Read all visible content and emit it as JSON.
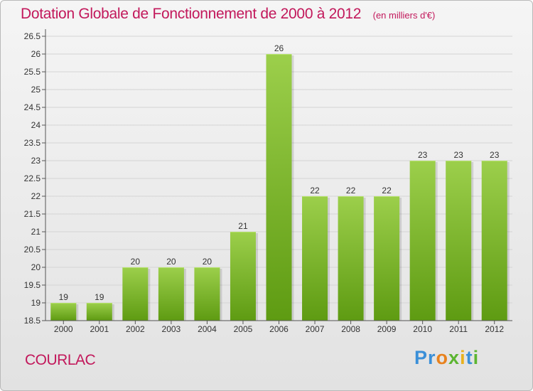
{
  "header": {
    "title": "Dotation Globale de Fonctionnement de 2000 à 2012",
    "unit": "(en milliers d'€)"
  },
  "footer": {
    "commune": "COURLAC",
    "brand_letters": [
      {
        "ch": "P",
        "color": "#3a8fd8"
      },
      {
        "ch": "r",
        "color": "#3a8fd8"
      },
      {
        "ch": "o",
        "color": "#e8821e"
      },
      {
        "ch": "x",
        "color": "#5cb531"
      },
      {
        "ch": "i",
        "color": "#e8b11e"
      },
      {
        "ch": "t",
        "color": "#3a8fd8"
      },
      {
        "ch": "i",
        "color": "#5cb531"
      }
    ]
  },
  "colors": {
    "title": "#c2185b",
    "bar_light": "#9ccf4b",
    "bar_dark": "#5e9b12",
    "grid": "#d4d4d4"
  },
  "chart_data": {
    "type": "bar",
    "categories": [
      "2000",
      "2001",
      "2002",
      "2003",
      "2004",
      "2005",
      "2006",
      "2007",
      "2008",
      "2009",
      "2010",
      "2011",
      "2012"
    ],
    "values": [
      19,
      19,
      20,
      20,
      20,
      21,
      26,
      22,
      22,
      22,
      23,
      23,
      23
    ],
    "ylim": [
      18.5,
      26.5
    ],
    "yticks": [
      "18.5",
      "19",
      "19.5",
      "20",
      "20.5",
      "21",
      "21.5",
      "22",
      "22.5",
      "23",
      "23.5",
      "24",
      "24.5",
      "25",
      "25.5",
      "26",
      "26.5"
    ],
    "grid": true,
    "data_labels": true
  }
}
